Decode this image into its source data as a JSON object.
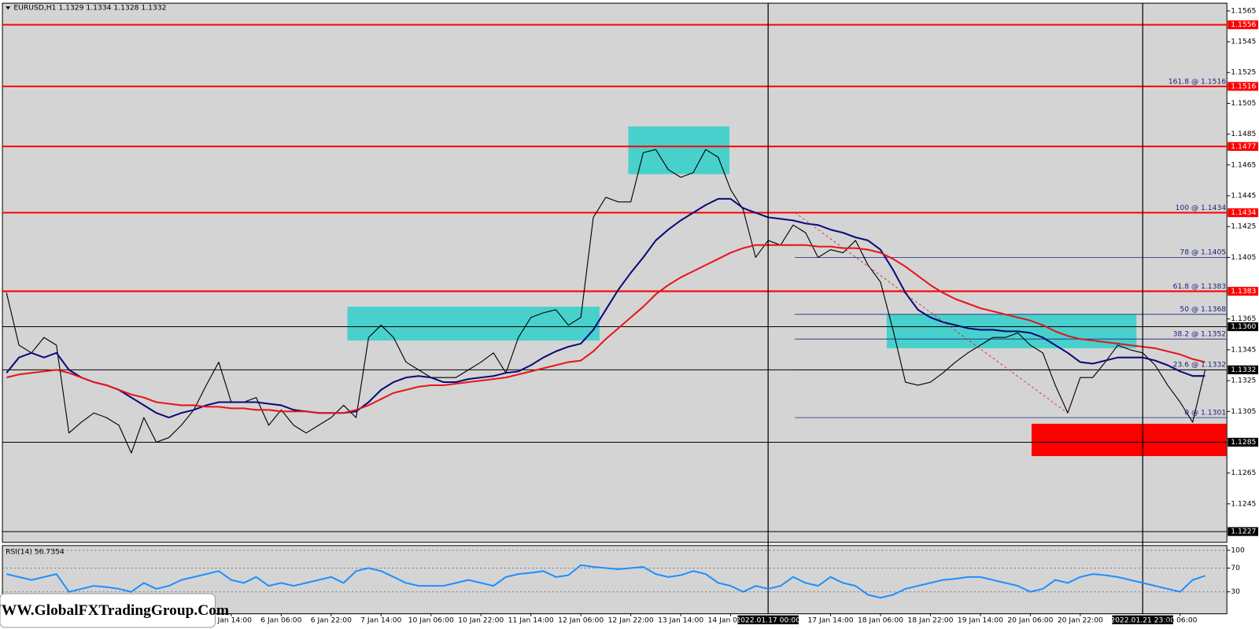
{
  "chart_data": [
    {
      "type": "line",
      "title": "EURUSD,H1  1.1329 1.1334 1.1328 1.1332",
      "watermark": "WWW.GlobalFXTradingGroup.Com",
      "categories": [
        null,
        null,
        null,
        null,
        null,
        null,
        null,
        null,
        null,
        null,
        null,
        null,
        null,
        null,
        null,
        null,
        null,
        null,
        "5 Jan 14:00",
        null,
        null,
        null,
        "6 Jan 06:00",
        null,
        null,
        null,
        "6 Jan 22:00",
        null,
        null,
        null,
        "7 Jan 14:00",
        null,
        null,
        null,
        "10 Jan 06:00",
        null,
        null,
        null,
        "10 Jan 22:00",
        null,
        null,
        null,
        "11 Jan 14:00",
        null,
        null,
        null,
        "12 Jan 06:00",
        null,
        null,
        null,
        "12 Jan 22:00",
        null,
        null,
        null,
        "13 Jan 14:00",
        null,
        null,
        null,
        "14 Jan 06:00",
        null,
        null,
        "2022.01.17 00:00",
        null,
        null,
        null,
        null,
        "17 Jan 14:00",
        null,
        null,
        null,
        "18 Jan 06:00",
        null,
        null,
        null,
        "18 Jan 22:00",
        null,
        null,
        null,
        "19 Jan 14:00",
        null,
        null,
        null,
        "20 Jan 06:00",
        null,
        null,
        null,
        "20 Jan 22:00",
        null,
        null,
        null,
        null,
        "2022.01.21 23:00",
        null,
        null,
        "Jan 06:00",
        null,
        null
      ],
      "series": [
        {
          "color": "#000000",
          "values": [
            1.1382,
            1.1348,
            1.1343,
            1.1353,
            1.1348,
            1.1291,
            1.1298,
            1.1304,
            1.1301,
            1.1296,
            1.1278,
            1.1301,
            1.1285,
            1.1288,
            1.1296,
            1.1306,
            1.1322,
            1.1337,
            1.1311,
            1.1311,
            1.1314,
            1.1296,
            1.1306,
            1.1296,
            1.1291,
            1.1296,
            1.1301,
            1.1309,
            1.1301,
            1.1353,
            1.1361,
            1.1353,
            1.1337,
            1.1332,
            1.1327,
            1.1327,
            1.1327,
            1.1332,
            1.1337,
            1.1343,
            1.133,
            1.1353,
            1.1366,
            1.1369,
            1.1371,
            1.1361,
            1.1366,
            1.1431,
            1.1444,
            1.1441,
            1.1441,
            1.1473,
            1.1475,
            1.1462,
            1.1457,
            1.146,
            1.1475,
            1.147,
            1.1449,
            1.1436,
            1.1405,
            1.1416,
            1.1413,
            1.1426,
            1.1421,
            1.1405,
            1.141,
            1.1408,
            1.1416,
            1.14,
            1.1389,
            1.1358,
            1.1324,
            1.1322,
            1.1324,
            1.133,
            1.1337,
            1.1343,
            1.1348,
            1.1353,
            1.1353,
            1.1356,
            1.1348,
            1.1343,
            1.1322,
            1.1304,
            1.1327,
            1.1327,
            1.1337,
            1.1348,
            1.1345,
            1.1343,
            1.1335,
            1.1322,
            1.1311,
            1.1298,
            1.1332
          ]
        },
        {
          "color": "#0a0a7a",
          "values": [
            1.133,
            1.134,
            1.1343,
            1.134,
            1.1343,
            1.1332,
            1.1327,
            1.1324,
            1.1322,
            1.1319,
            1.1314,
            1.1309,
            1.1304,
            1.1301,
            1.1304,
            1.1306,
            1.1309,
            1.1311,
            1.1311,
            1.1311,
            1.1311,
            1.131,
            1.1309,
            1.1306,
            1.1305,
            1.1304,
            1.1304,
            1.1304,
            1.1305,
            1.1311,
            1.1319,
            1.1324,
            1.1327,
            1.1328,
            1.1327,
            1.1324,
            1.1324,
            1.1326,
            1.1327,
            1.1328,
            1.133,
            1.1331,
            1.1335,
            1.134,
            1.1344,
            1.1347,
            1.1349,
            1.1358,
            1.1371,
            1.1384,
            1.1395,
            1.1405,
            1.1416,
            1.1423,
            1.1429,
            1.1434,
            1.1439,
            1.1443,
            1.1443,
            1.1437,
            1.1434,
            1.1431,
            1.143,
            1.1429,
            1.1427,
            1.1426,
            1.1423,
            1.1421,
            1.1418,
            1.1416,
            1.141,
            1.1397,
            1.1382,
            1.1371,
            1.1366,
            1.1363,
            1.1361,
            1.1359,
            1.1358,
            1.1358,
            1.1357,
            1.1357,
            1.1356,
            1.1353,
            1.1348,
            1.1343,
            1.1337,
            1.1336,
            1.1338,
            1.134,
            1.134,
            1.134,
            1.1338,
            1.1335,
            1.1331,
            1.1328,
            1.1328
          ]
        },
        {
          "color": "#e8141c",
          "values": [
            1.1327,
            1.1329,
            1.133,
            1.1331,
            1.1332,
            1.133,
            1.1327,
            1.1324,
            1.1322,
            1.1319,
            1.1316,
            1.1314,
            1.1311,
            1.131,
            1.1309,
            1.1309,
            1.1308,
            1.1308,
            1.1307,
            1.1307,
            1.1306,
            1.1306,
            1.1305,
            1.1305,
            1.1305,
            1.1304,
            1.1304,
            1.1304,
            1.1306,
            1.1309,
            1.1313,
            1.1317,
            1.1319,
            1.1321,
            1.1322,
            1.1322,
            1.1323,
            1.1324,
            1.1325,
            1.1326,
            1.1327,
            1.1329,
            1.1331,
            1.1333,
            1.1335,
            1.1337,
            1.1338,
            1.1344,
            1.1352,
            1.1359,
            1.1366,
            1.1373,
            1.1381,
            1.1387,
            1.1392,
            1.1396,
            1.14,
            1.1404,
            1.1408,
            1.1411,
            1.1413,
            1.1413,
            1.1413,
            1.1413,
            1.1413,
            1.1412,
            1.1412,
            1.1411,
            1.1411,
            1.141,
            1.1408,
            1.1404,
            1.1399,
            1.1393,
            1.1387,
            1.1382,
            1.1378,
            1.1375,
            1.1372,
            1.137,
            1.1368,
            1.1366,
            1.1364,
            1.1361,
            1.1357,
            1.1354,
            1.1352,
            1.1351,
            1.135,
            1.1349,
            1.1348,
            1.1347,
            1.1346,
            1.1344,
            1.1342,
            1.1339,
            1.1337
          ]
        }
      ],
      "zones": [
        {
          "color": "#48d1cc",
          "x": [
            27.3,
            47.5
          ],
          "y": [
            1.1373,
            1.1351
          ]
        },
        {
          "color": "#48d1cc",
          "x": [
            49.8,
            57.9
          ],
          "y": [
            1.149,
            1.1459
          ]
        },
        {
          "color": "#48d1cc",
          "x": [
            70.5,
            90.5
          ],
          "y": [
            1.1368,
            1.1346
          ]
        },
        {
          "color": "#ff0000",
          "x": [
            82.1,
            97.7
          ],
          "y": [
            1.1297,
            1.1276
          ]
        }
      ],
      "levels": [
        {
          "value": 1.1556,
          "color": "#ff0000"
        },
        {
          "value": 1.1516,
          "color": "#ff0000"
        },
        {
          "value": 1.1477,
          "color": "#ff0000"
        },
        {
          "value": 1.1434,
          "color": "#ff0000"
        },
        {
          "value": 1.1383,
          "color": "#ff0000"
        },
        {
          "value": 1.136,
          "label": "1.1360",
          "color": "#000000"
        },
        {
          "value": 1.1332,
          "color": "#000000"
        },
        {
          "value": 1.1285,
          "color": "#000000"
        },
        {
          "value": 1.1227,
          "color": "#000000"
        }
      ],
      "fib": [
        {
          "label": "161.8 @ 1.1516",
          "value": 1.1516
        },
        {
          "label": "100 @ 1.1434",
          "value": 1.1434
        },
        {
          "label": "78 @ 1.1405",
          "value": 1.1405
        },
        {
          "label": "61.8 @ 1.1383",
          "value": 1.1383
        },
        {
          "label": "50 @ 1.1368",
          "value": 1.1368
        },
        {
          "label": "38.2 @ 1.1352",
          "value": 1.1352
        },
        {
          "label": "23.6 @ 1.1332",
          "value": 1.1332
        },
        {
          "label": "0 @ 1.1301",
          "value": 1.1301
        }
      ],
      "ylim": [
        1.122,
        1.157
      ],
      "yticks": [
        1.1565,
        1.1545,
        1.1525,
        1.1505,
        1.1485,
        1.1465,
        1.1445,
        1.1425,
        1.1405,
        1.1365,
        1.1345,
        1.1325,
        1.1305,
        1.1265,
        1.1245
      ]
    },
    {
      "type": "line",
      "title": "RSI(14) 56.7354",
      "series": [
        {
          "color": "#1e90ff",
          "values": [
            60,
            55,
            50,
            55,
            60,
            30,
            35,
            40,
            38,
            35,
            30,
            45,
            35,
            40,
            50,
            55,
            60,
            65,
            50,
            45,
            55,
            40,
            45,
            40,
            45,
            50,
            55,
            45,
            65,
            70,
            65,
            55,
            45,
            40,
            40,
            40,
            45,
            50,
            45,
            40,
            55,
            60,
            62,
            65,
            55,
            58,
            75,
            72,
            70,
            68,
            70,
            72,
            60,
            55,
            58,
            65,
            60,
            45,
            40,
            30,
            40,
            35,
            40,
            55,
            45,
            40,
            55,
            45,
            40,
            25,
            20,
            25,
            35,
            40,
            45,
            50,
            52,
            55,
            55,
            50,
            45,
            40,
            30,
            35,
            50,
            45,
            55,
            60,
            58,
            55,
            50,
            45,
            40,
            35,
            30,
            50,
            57
          ]
        }
      ],
      "ylim": [
        -7,
        108
      ],
      "yticks": [
        100,
        70,
        30
      ]
    }
  ]
}
